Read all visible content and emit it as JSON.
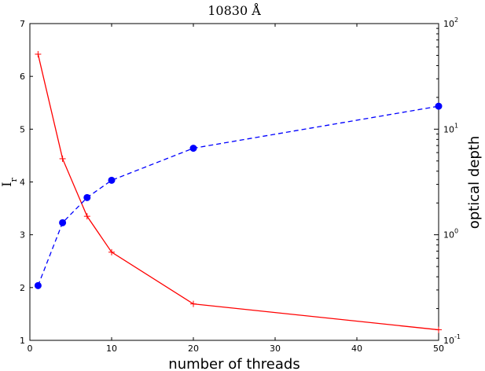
{
  "chart_data": {
    "type": "line",
    "title": "10830 Å",
    "xlabel": "number of threads",
    "ylabel_left": "I_r",
    "ylabel_right": "optical depth",
    "xlim": [
      0,
      50
    ],
    "ylim_left": [
      1,
      7
    ],
    "ylim_right": [
      0.1,
      100
    ],
    "right_axis_scale": "log",
    "x_ticks": [
      "0",
      "10",
      "20",
      "30",
      "40",
      "50"
    ],
    "y_left_ticks": [
      "1",
      "2",
      "3",
      "4",
      "5",
      "6",
      "7"
    ],
    "y_right_ticks": [
      {
        "base": "10",
        "exp": "-1"
      },
      {
        "base": "10",
        "exp": "0"
      },
      {
        "base": "10",
        "exp": "1"
      },
      {
        "base": "10",
        "exp": "2"
      }
    ],
    "x": [
      1,
      4,
      7,
      10,
      20,
      50
    ],
    "series": [
      {
        "axis": "left",
        "color": "#ff0000",
        "line_style": "solid",
        "marker": "plus",
        "values": [
          6.42,
          4.44,
          3.35,
          2.67,
          1.69,
          1.2
        ]
      },
      {
        "axis": "right",
        "color": "#0000ff",
        "line_style": "dashed",
        "marker": "circle",
        "values": [
          0.33,
          1.3,
          2.25,
          3.28,
          6.6,
          16.5
        ]
      }
    ],
    "grid": false,
    "legend": "none"
  }
}
